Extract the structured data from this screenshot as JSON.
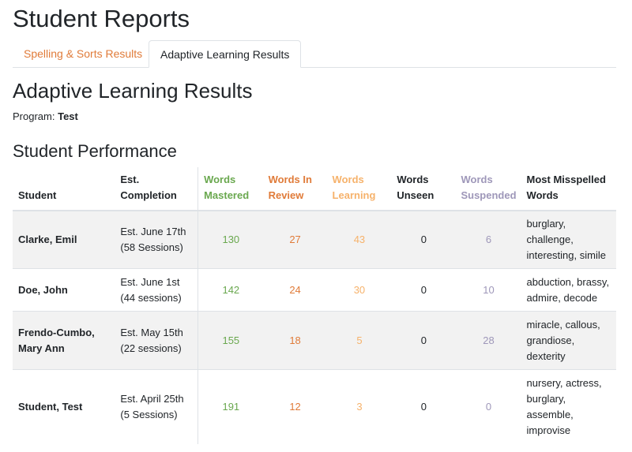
{
  "page": {
    "title": "Student Reports"
  },
  "tabs": [
    {
      "label": "Spelling & Sorts Results",
      "active": false,
      "color": "#e07b39"
    },
    {
      "label": "Adaptive Learning Results",
      "active": true
    }
  ],
  "section": {
    "title": "Adaptive Learning Results",
    "program_label": "Program:",
    "program_value": "Test"
  },
  "performance": {
    "title": "Student Performance",
    "columns": {
      "student": "Student",
      "est": "Est. Completion",
      "mastered": "Words Mastered",
      "review": "Words In Review",
      "learning": "Words Learning",
      "unseen": "Words Unseen",
      "suspended": "Words Suspended",
      "misspelled": "Most Misspelled Words"
    },
    "colors": {
      "mastered": "#6aa84f",
      "review": "#e07b39",
      "learning": "#f6b26b",
      "unseen": "#212529",
      "suspended": "#9e97b9"
    },
    "rows": [
      {
        "student": "Clarke, Emil",
        "est_line1": "Est. June 17th",
        "est_line2": "(58 Sessions)",
        "mastered": "130",
        "review": "27",
        "learning": "43",
        "unseen": "0",
        "suspended": "6",
        "misspelled": "burglary, challenge, interesting, simile"
      },
      {
        "student": "Doe, John",
        "est_line1": "Est. June 1st",
        "est_line2": "(44 sessions)",
        "mastered": "142",
        "review": "24",
        "learning": "30",
        "unseen": "0",
        "suspended": "10",
        "misspelled": "abduction, brassy, admire, decode"
      },
      {
        "student": "Frendo-Cumbo, Mary Ann",
        "est_line1": "Est. May 15th",
        "est_line2": "(22 sessions)",
        "mastered": "155",
        "review": "18",
        "learning": "5",
        "unseen": "0",
        "suspended": "28",
        "misspelled": "miracle, callous, grandiose, dexterity"
      },
      {
        "student": "Student, Test",
        "est_line1": "Est. April 25th",
        "est_line2": "(5 Sessions)",
        "mastered": "191",
        "review": "12",
        "learning": "3",
        "unseen": "0",
        "suspended": "0",
        "misspelled": "nursery, actress, burglary, assemble, improvise"
      }
    ]
  }
}
